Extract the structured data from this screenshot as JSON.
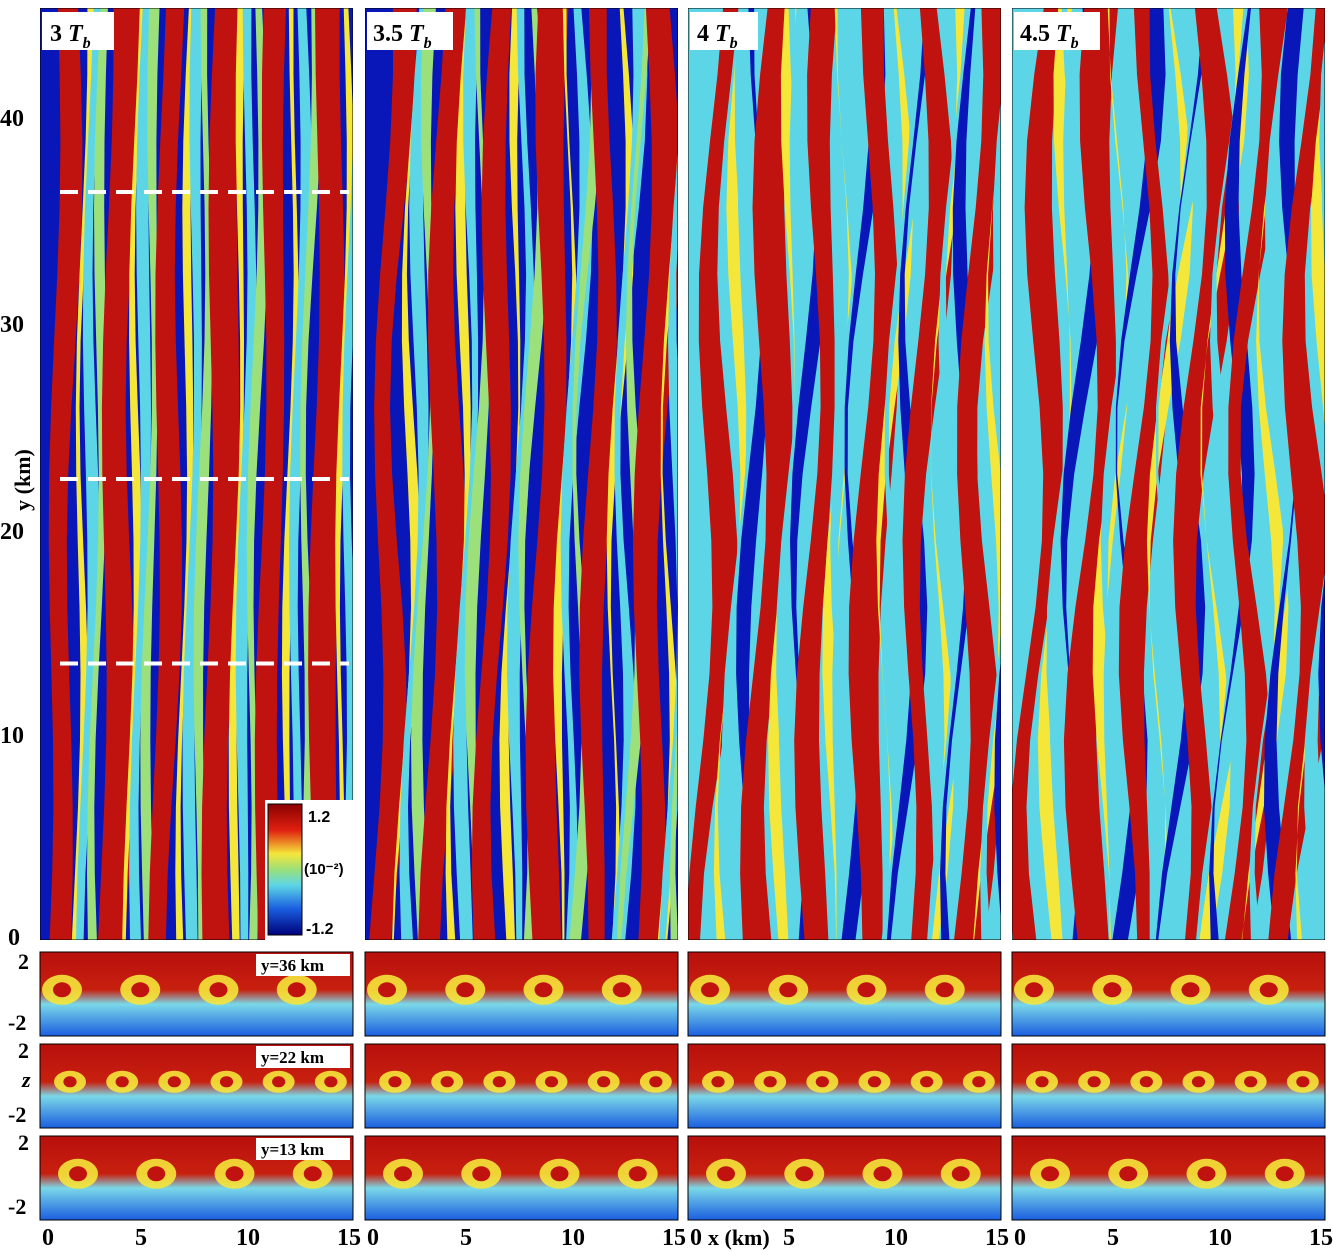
{
  "figure": {
    "y_axis_label": "y (km)",
    "z_axis_label": "z",
    "x_axis_label": "x (km)",
    "x_ticks": [
      "0",
      "5",
      "10",
      "15"
    ],
    "y_ticks": [
      "0",
      "10",
      "20",
      "30",
      "40"
    ],
    "z_ticks": [
      "2",
      "-2"
    ],
    "colorbar": {
      "max": "1.2",
      "mid": "(10⁻²)",
      "min": "-1.2"
    },
    "panels": [
      {
        "title_num": "3",
        "title_sym": "T",
        "title_sub": "b",
        "state": 0
      },
      {
        "title_num": "3.5",
        "title_sym": "T",
        "title_sub": "b",
        "state": 1
      },
      {
        "title_num": "4",
        "title_sym": "T",
        "title_sub": "b",
        "state": 2
      },
      {
        "title_num": "4.5",
        "title_sym": "T",
        "title_sub": "b",
        "state": 3
      }
    ],
    "cross_sections": [
      {
        "label": "y=36 km",
        "y_km": 36
      },
      {
        "label": "y=22 km",
        "y_km": 22
      },
      {
        "label": "y=13 km",
        "y_km": 13
      }
    ],
    "colors": {
      "red": "#c0120e",
      "blue": "#0a17b8",
      "cyan": "#5cd6e6",
      "yellow": "#f5e63a",
      "green": "#9be07a",
      "dashed_line": "#ffffff"
    }
  }
}
